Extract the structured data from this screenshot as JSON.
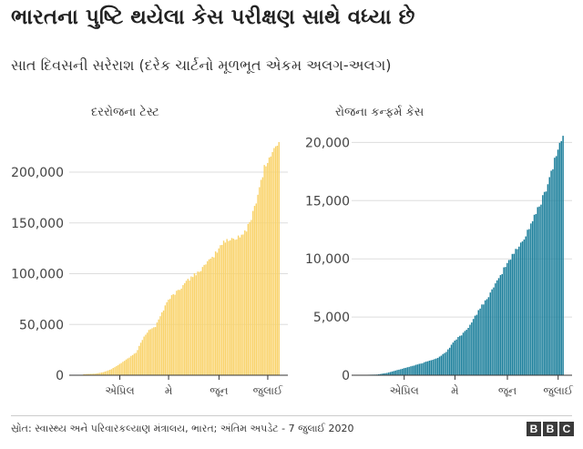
{
  "title": "ભારતના પુષ્ટિ થયેલા કેસ પરીક્ષણ સાથે વધ્યા છે",
  "subtitle": "સાત દિવસની સરેરાશ (દરેક ચાર્ટનો મૂળભૂત એકમ અલગ-અલગ)",
  "source": "સ્રોત: સ્વાસ્થ્ય અને પરિવારકલ્યાણ મંત્રાલય, ભારત; અંતિમ અપડેટ - 7 જુલાઈ 2020",
  "logo_letters": [
    "B",
    "B",
    "C"
  ],
  "colors": {
    "tests": "#f9d36b",
    "cases": "#1b7f9b",
    "axis": "#333333",
    "grid": "#dddddd"
  },
  "chart_data": [
    {
      "type": "bar",
      "title": "દરરોજના ટેસ્ટ",
      "x_tick_labels": [
        "એપ્રિલ",
        "મે",
        "જૂન",
        "જુલાઈ"
      ],
      "x_tick_positions_in_days": [
        30,
        60,
        91,
        121
      ],
      "y_ticks": [
        "0",
        "50,000",
        "100,000",
        "150,000",
        "200,000"
      ],
      "ylim": [
        0,
        235000
      ],
      "grid": true,
      "values_note": "",
      "anchors": [
        [
          0,
          500
        ],
        [
          10,
          1200
        ],
        [
          15,
          1500
        ],
        [
          20,
          3000
        ],
        [
          25,
          6000
        ],
        [
          30,
          11000
        ],
        [
          40,
          22000
        ],
        [
          45,
          38000
        ],
        [
          48,
          45000
        ],
        [
          52,
          48000
        ],
        [
          55,
          58000
        ],
        [
          60,
          75000
        ],
        [
          65,
          82000
        ],
        [
          70,
          90000
        ],
        [
          75,
          98000
        ],
        [
          80,
          104000
        ],
        [
          85,
          112000
        ],
        [
          90,
          122000
        ],
        [
          93,
          130000
        ],
        [
          97,
          133000
        ],
        [
          101,
          135000
        ],
        [
          105,
          138000
        ],
        [
          108,
          142000
        ],
        [
          112,
          160000
        ],
        [
          116,
          185000
        ],
        [
          119,
          205000
        ],
        [
          122,
          213000
        ],
        [
          125,
          222000
        ],
        [
          128,
          232000
        ]
      ],
      "start_day": 8,
      "end_day": 128
    },
    {
      "type": "bar",
      "title": "રોજના કન્ફર્મ કેસ",
      "x_tick_labels": [
        "એપ્રિલ",
        "મે",
        "જૂન",
        "જુલાઈ"
      ],
      "x_tick_positions_in_days": [
        30,
        60,
        91,
        121
      ],
      "y_ticks": [
        "0",
        "5,000",
        "10,000",
        "15,000",
        "20,000"
      ],
      "ylim": [
        0,
        20500
      ],
      "grid": true,
      "anchors": [
        [
          0,
          10
        ],
        [
          14,
          60
        ],
        [
          20,
          200
        ],
        [
          30,
          600
        ],
        [
          40,
          1000
        ],
        [
          50,
          1500
        ],
        [
          55,
          2000
        ],
        [
          60,
          3000
        ],
        [
          65,
          3600
        ],
        [
          70,
          4500
        ],
        [
          75,
          5800
        ],
        [
          80,
          6800
        ],
        [
          85,
          8000
        ],
        [
          90,
          9400
        ],
        [
          95,
          10500
        ],
        [
          100,
          11500
        ],
        [
          105,
          13000
        ],
        [
          110,
          14500
        ],
        [
          115,
          16500
        ],
        [
          118,
          18000
        ],
        [
          121,
          19500
        ],
        [
          124,
          20500
        ]
      ],
      "start_day": 8,
      "end_day": 124
    }
  ]
}
